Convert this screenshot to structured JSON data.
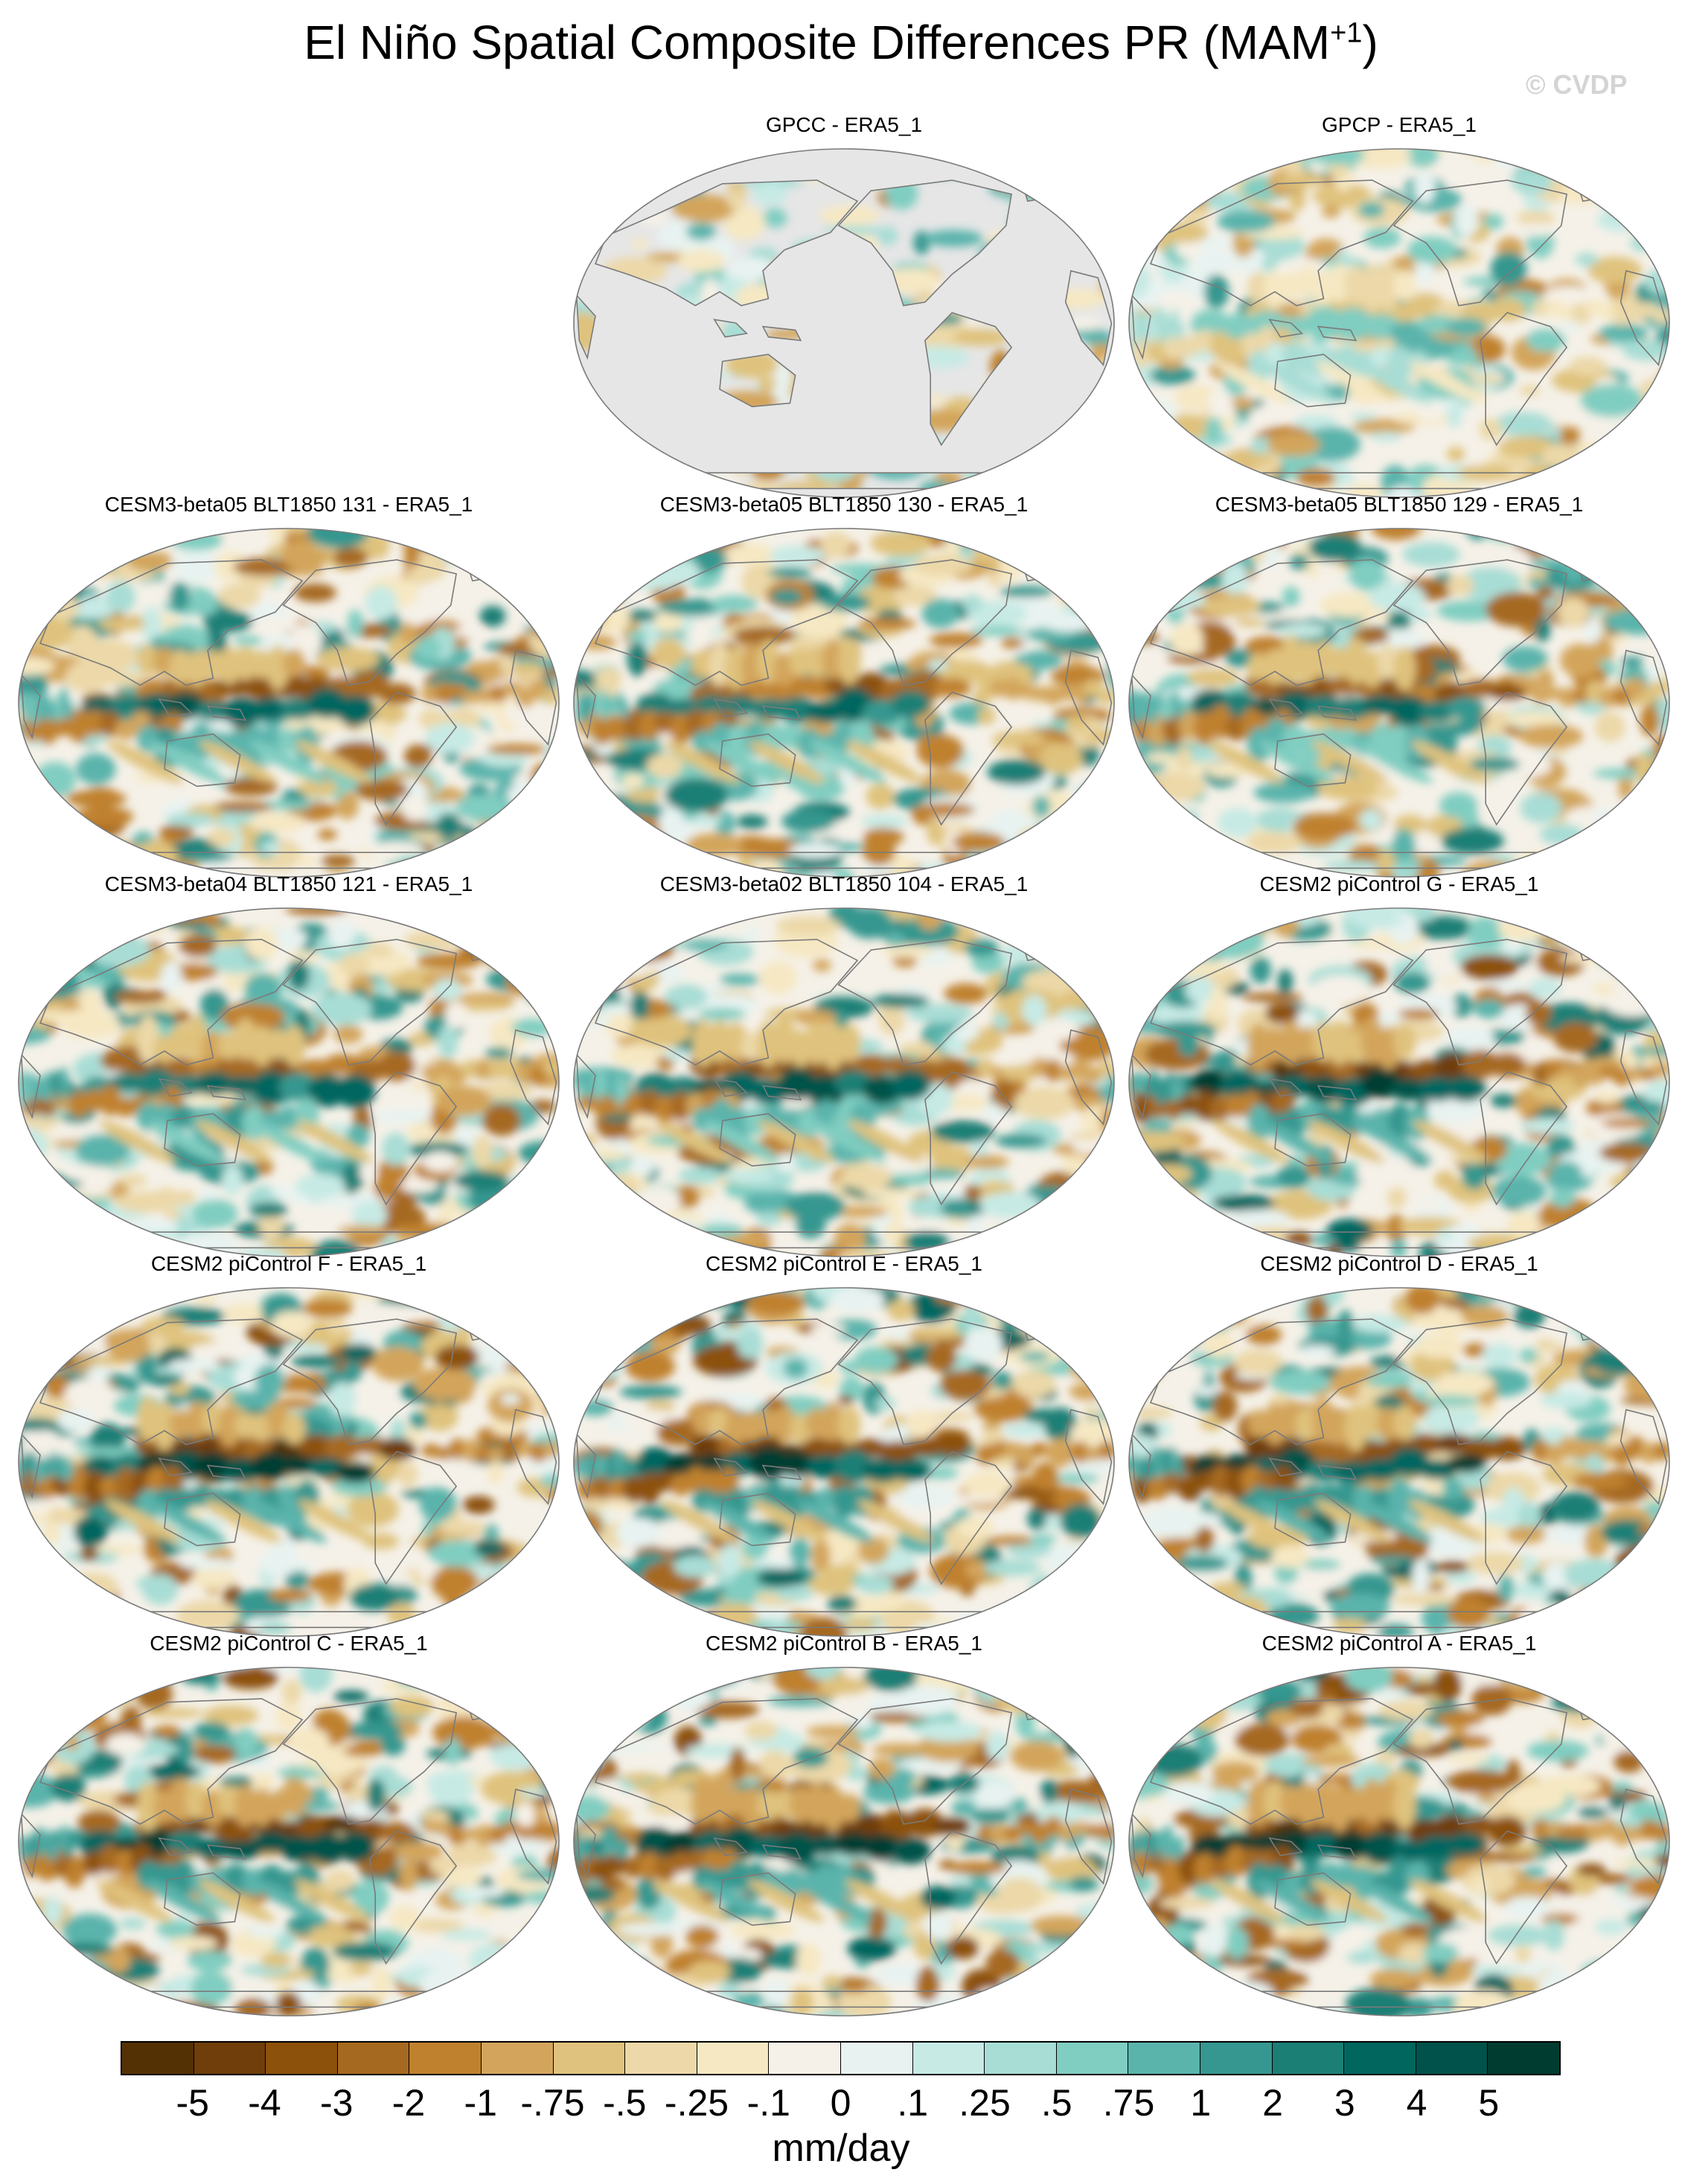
{
  "figure": {
    "title_main": "El Niño Spatial Composite Differences PR (MAM",
    "title_sup": "+1",
    "title_end": ")",
    "watermark": "© CVDP"
  },
  "panels": [
    {
      "title": "GPCC - ERA5_1",
      "style": "landonly",
      "seed": 11
    },
    {
      "title": "GPCP - ERA5_1",
      "style": "weak",
      "seed": 22
    },
    {
      "title": "CESM3-beta05 BLT1850 131 - ERA5_1",
      "style": "model",
      "seed": 33
    },
    {
      "title": "CESM3-beta05 BLT1850 130 - ERA5_1",
      "style": "model",
      "seed": 44
    },
    {
      "title": "CESM3-beta05 BLT1850 129 - ERA5_1",
      "style": "model",
      "seed": 55
    },
    {
      "title": "CESM3-beta04 BLT1850 121 - ERA5_1",
      "style": "model",
      "seed": 66
    },
    {
      "title": "CESM3-beta02 BLT1850 104 - ERA5_1",
      "style": "model",
      "seed": 77
    },
    {
      "title": "CESM2 piControl G - ERA5_1",
      "style": "strong",
      "seed": 88
    },
    {
      "title": "CESM2 piControl F - ERA5_1",
      "style": "strong",
      "seed": 99
    },
    {
      "title": "CESM2 piControl E - ERA5_1",
      "style": "strong",
      "seed": 111
    },
    {
      "title": "CESM2 piControl D - ERA5_1",
      "style": "strong",
      "seed": 122
    },
    {
      "title": "CESM2 piControl C - ERA5_1",
      "style": "strong",
      "seed": 133
    },
    {
      "title": "CESM2 piControl B - ERA5_1",
      "style": "strong",
      "seed": 144
    },
    {
      "title": "CESM2 piControl A - ERA5_1",
      "style": "strong",
      "seed": 155
    }
  ],
  "colorbar": {
    "colors": [
      "#543005",
      "#6f3e0b",
      "#8c510a",
      "#a66920",
      "#bf812d",
      "#d3a55c",
      "#dfc27d",
      "#ecd8a8",
      "#f6e8c3",
      "#f5f1e8",
      "#e8f3f1",
      "#c7eae5",
      "#a8ddd5",
      "#80cdc1",
      "#5ab4ac",
      "#35978f",
      "#1b7f76",
      "#01665e",
      "#00524a",
      "#003c30"
    ],
    "labels": [
      "-5",
      "-4",
      "-3",
      "-2",
      "-1",
      "-.75",
      "-.5",
      "-.25",
      "-.1",
      "0",
      ".1",
      ".25",
      ".5",
      ".75",
      "1",
      "2",
      "3",
      "4",
      "5"
    ],
    "units": "mm/day"
  }
}
